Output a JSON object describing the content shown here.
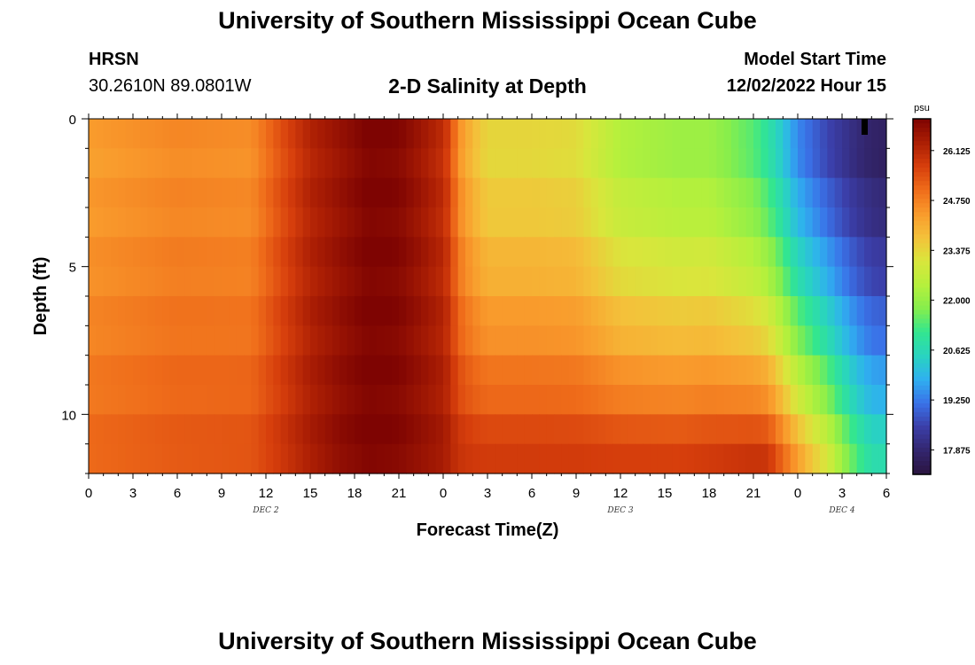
{
  "header": {
    "title": "University of Southern Mississippi Ocean Cube",
    "station": "HRSN",
    "coords": "30.2610N  89.0801W",
    "subtitle": "2-D Salinity at Depth",
    "model_start_label": "Model Start Time",
    "model_start_value": "12/02/2022 Hour 15"
  },
  "footer": {
    "title": "University of Southern Mississippi Ocean Cube"
  },
  "colors": {
    "ramp": [
      "#2a1440",
      "#33266e",
      "#3b3ea8",
      "#3a72e8",
      "#2fb0f0",
      "#29d4c0",
      "#33e68f",
      "#86ee4c",
      "#b6f03c",
      "#d9e63c",
      "#f4c13a",
      "#f99a2c",
      "#ef6c1a",
      "#d63e0c",
      "#ab1e04",
      "#7e0402"
    ]
  },
  "chart_data": {
    "type": "heatmap",
    "title": "2-D Salinity at Depth",
    "xlabel": "Forecast Time(Z)",
    "ylabel": "Depth (ft)",
    "x_range_hours": [
      0,
      54
    ],
    "x_tick_labels": [
      "0",
      "3",
      "6",
      "9",
      "12",
      "15",
      "18",
      "21",
      "0",
      "3",
      "6",
      "9",
      "12",
      "15",
      "18",
      "21",
      "0",
      "3",
      "6"
    ],
    "date_labels": [
      {
        "label": "DEC 2",
        "hour": 12
      },
      {
        "label": "DEC 3",
        "hour": 36
      },
      {
        "label": "DEC 4",
        "hour": 51
      }
    ],
    "y_range_ft": [
      0,
      12
    ],
    "y_ticks": [
      0,
      5,
      10
    ],
    "y_minor_tick_step_ft": 1,
    "grid": false,
    "colorbar": {
      "unit": "psu",
      "range": [
        17.2,
        27.0
      ],
      "tick_labels": [
        "26.125",
        "24.750",
        "23.375",
        "22.000",
        "20.625",
        "19.250",
        "17.875"
      ]
    },
    "depth_levels_ft": [
      0,
      1,
      2,
      3,
      4,
      5,
      6,
      7,
      8,
      9,
      10,
      11,
      12
    ],
    "salinity_key_times_hours": [
      0,
      6,
      11,
      13,
      15,
      17,
      19,
      21,
      22.5,
      24,
      24.5,
      25,
      26,
      27,
      30,
      33,
      36,
      40,
      42,
      45,
      46,
      47,
      48,
      49,
      50,
      51,
      52,
      53,
      54
    ],
    "salinity_surface_psu": [
      24.3,
      24.6,
      24.5,
      25.4,
      26.2,
      26.6,
      27.0,
      26.9,
      26.5,
      26.0,
      25.5,
      24.5,
      23.8,
      23.3,
      23.3,
      23.2,
      22.3,
      22.0,
      22.0,
      21.3,
      20.8,
      20.1,
      19.3,
      18.9,
      18.5,
      18.2,
      17.9,
      17.7,
      17.6
    ],
    "salinity_bottom_psu": [
      25.2,
      25.4,
      25.5,
      25.9,
      26.4,
      26.8,
      27.0,
      26.9,
      26.7,
      26.5,
      26.3,
      26.1,
      26.0,
      26.0,
      26.0,
      26.0,
      26.0,
      26.0,
      26.1,
      26.3,
      26.3,
      25.5,
      24.7,
      24.0,
      23.4,
      22.4,
      21.6,
      21.0,
      21.0
    ],
    "corner_marker_hour": 52.5
  }
}
